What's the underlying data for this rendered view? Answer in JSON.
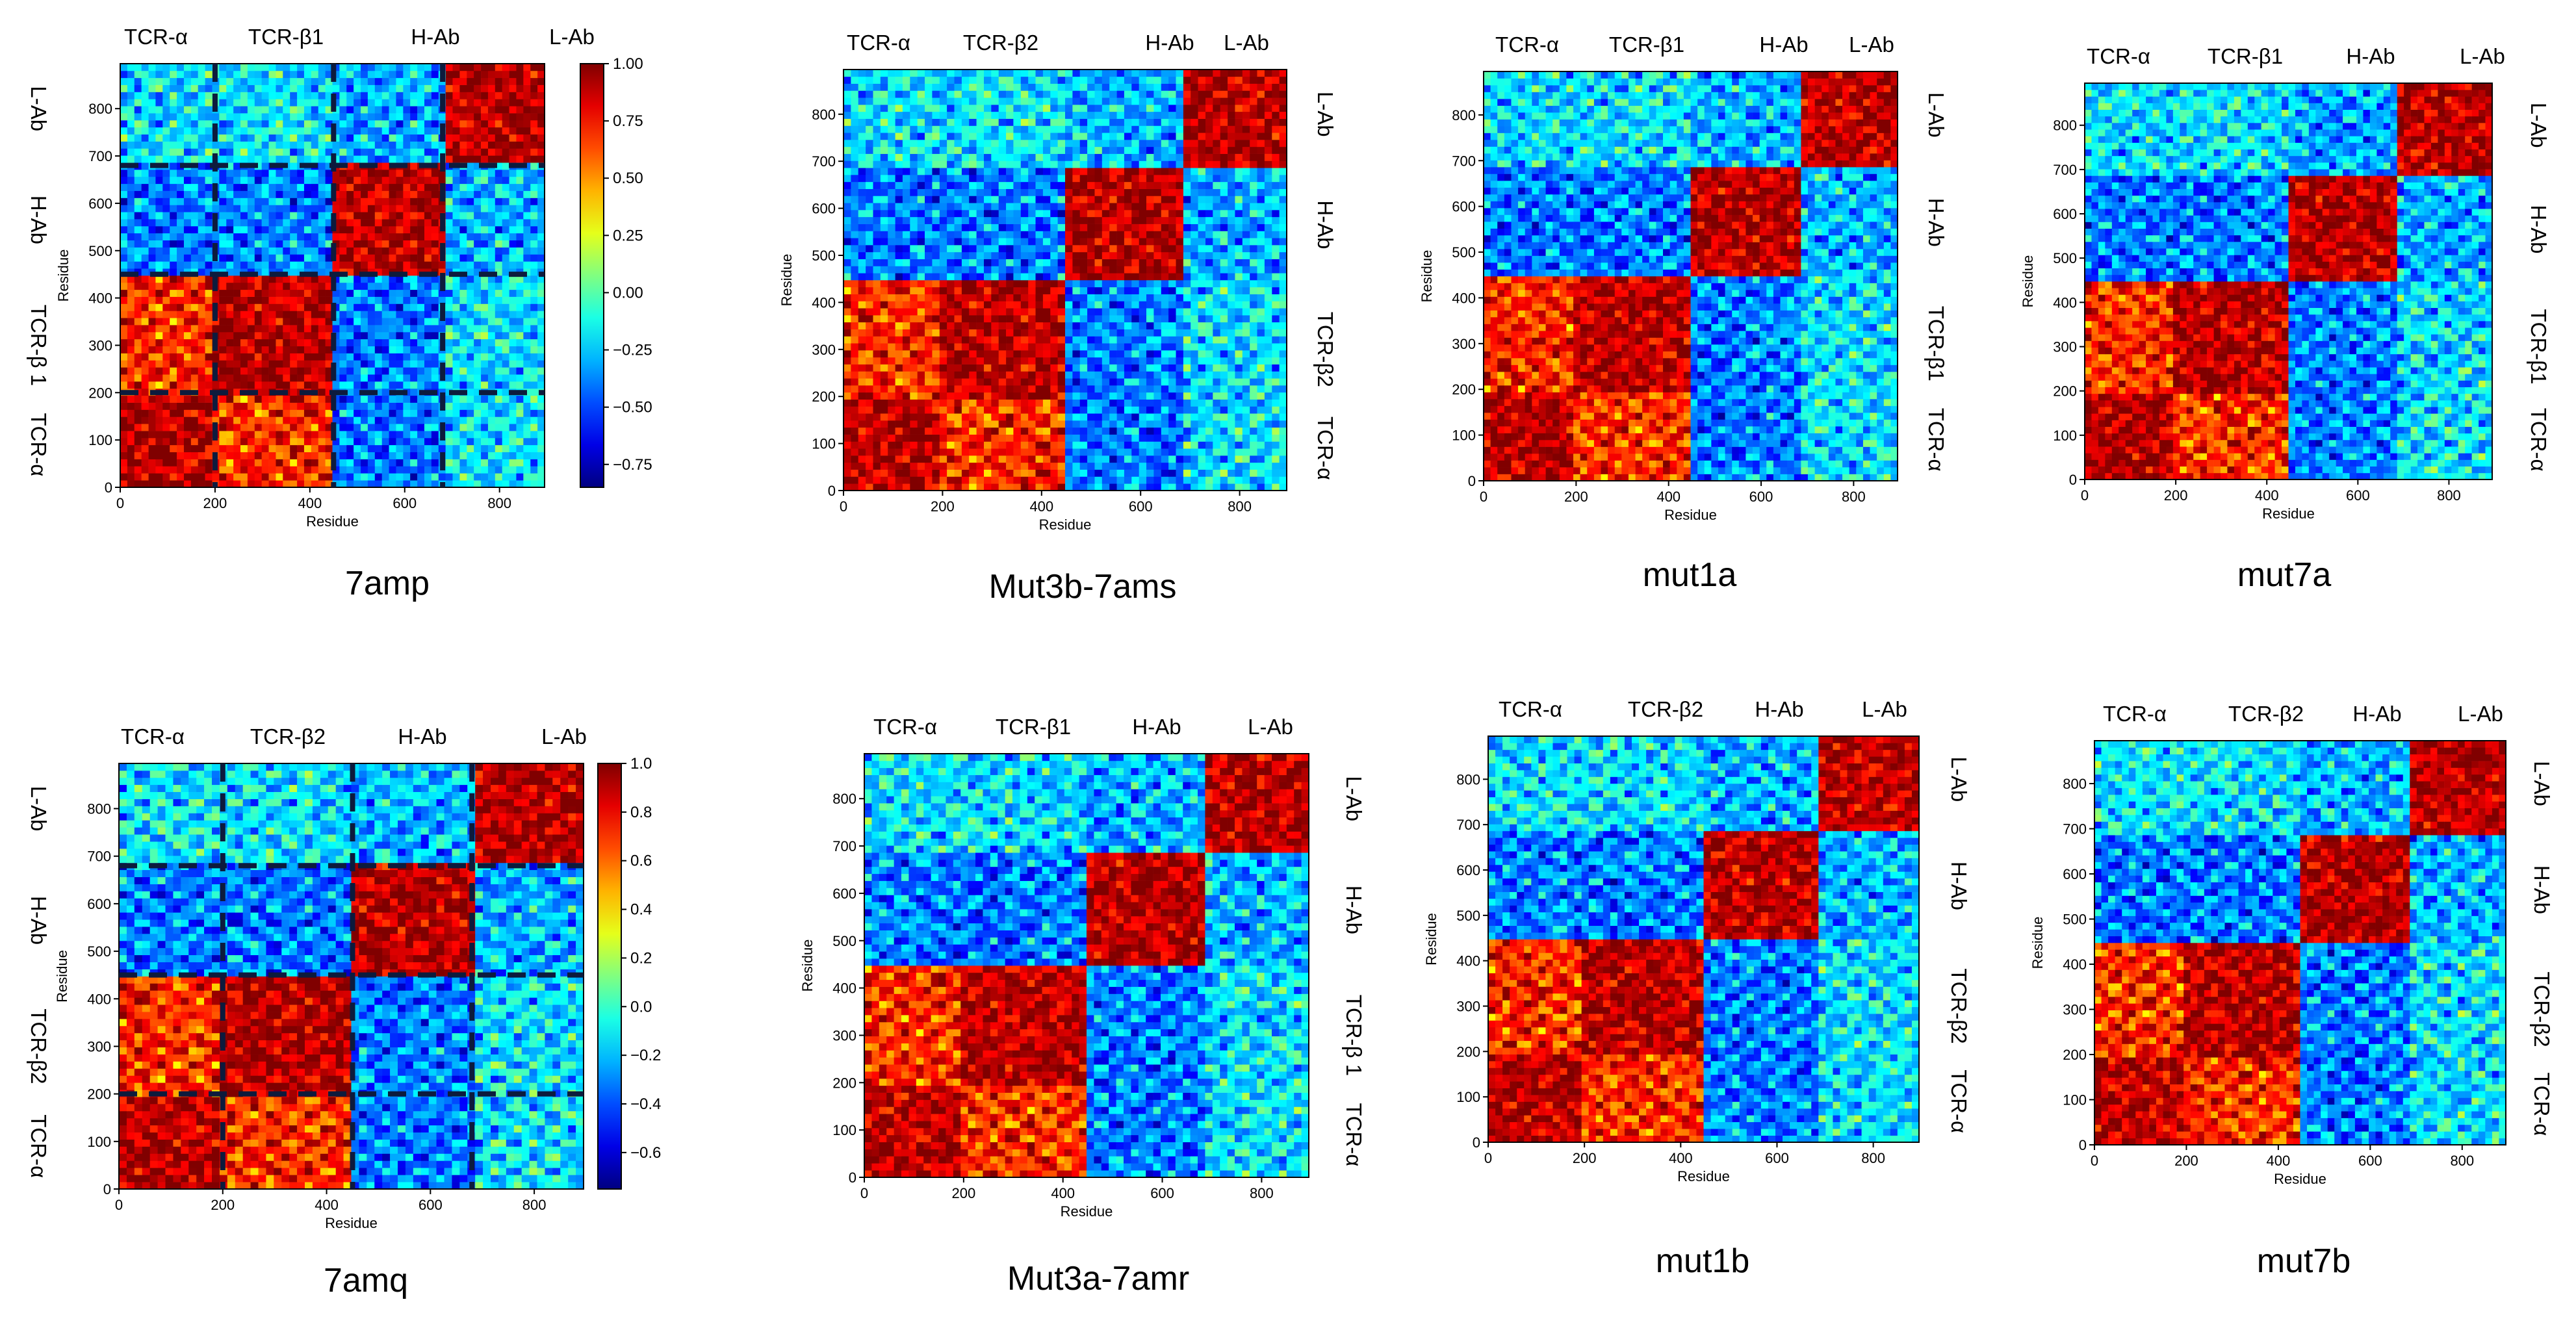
{
  "chart_data": {
    "type": "heatmap",
    "description": "Dynamic cross-correlation matrices of residue motions",
    "shared": {
      "xlabel": "Residue",
      "ylabel": "Residue",
      "xlim": [
        0,
        895
      ],
      "ylim": [
        0,
        895
      ],
      "ticks": [
        0,
        200,
        400,
        600,
        800
      ],
      "tick_labels_y": [
        "0",
        "100",
        "200",
        "300",
        "400",
        "500",
        "600",
        "700",
        "800"
      ],
      "tick_labels_x": [
        "0",
        "200",
        "400",
        "600",
        "800"
      ],
      "boundaries": [
        200,
        450,
        680
      ]
    },
    "colormaps": [
      {
        "name": "jet",
        "ticks": [
          "1.00",
          "0.75",
          "0.50",
          "0.25",
          "0.00",
          "−0.25",
          "−0.50",
          "−0.75"
        ],
        "range": [
          -0.85,
          1.0
        ]
      },
      {
        "name": "jet",
        "ticks": [
          "1.0",
          "0.8",
          "0.6",
          "0.4",
          "0.2",
          "0.0",
          "−0.2",
          "−0.4",
          "−0.6"
        ],
        "range": [
          -0.75,
          1.0
        ]
      }
    ],
    "panels": [
      {
        "id": "7amp",
        "title": "7amp",
        "top": [
          "TCR-α",
          "TCR-β1",
          "H-Ab",
          "L-Ab"
        ],
        "side": [
          "L-Ab",
          "H-Ab",
          "TCR-β 1",
          "TCR-α"
        ],
        "side_pos": "left",
        "colorbar": 0,
        "dashed": true
      },
      {
        "id": "mut3b",
        "title": "Mut3b-7ams",
        "top": [
          "TCR-α",
          "TCR-β2",
          "H-Ab",
          "L-Ab"
        ],
        "side": [
          "L-Ab",
          "H-Ab",
          "TCR-β2",
          "TCR-α"
        ],
        "side_pos": "right",
        "colorbar": null,
        "dashed": false
      },
      {
        "id": "mut1a",
        "title": "mut1a",
        "top": [
          "TCR-α",
          "TCR-β1",
          "H-Ab",
          "L-Ab"
        ],
        "side": [
          "L-Ab",
          "H-Ab",
          "TCR-β1",
          "TCR-α"
        ],
        "side_pos": "right",
        "colorbar": null,
        "dashed": false
      },
      {
        "id": "mut7a",
        "title": "mut7a",
        "top": [
          "TCR-α",
          "TCR-β1",
          "H-Ab",
          "L-Ab"
        ],
        "side": [
          "L-Ab",
          "H-Ab",
          "TCR-β1",
          "TCR-α"
        ],
        "side_pos": "right",
        "colorbar": null,
        "dashed": false
      },
      {
        "id": "7amq",
        "title": "7amq",
        "top": [
          "TCR-α",
          "TCR-β2",
          "H-Ab",
          "L-Ab"
        ],
        "side": [
          "L-Ab",
          "H-Ab",
          "TCR-β2",
          "TCR-α"
        ],
        "side_pos": "left",
        "colorbar": 1,
        "dashed": true
      },
      {
        "id": "mut3a",
        "title": "Mut3a-7amr",
        "top": [
          "TCR-α",
          "TCR-β1",
          "H-Ab",
          "L-Ab"
        ],
        "side": [
          "L-Ab",
          "H-Ab",
          "TCR-β 1",
          "TCR-α"
        ],
        "side_pos": "right",
        "colorbar": null,
        "dashed": false
      },
      {
        "id": "mut1b",
        "title": "mut1b",
        "top": [
          "TCR-α",
          "TCR-β2",
          "H-Ab",
          "L-Ab"
        ],
        "side": [
          "L-Ab",
          "H-Ab",
          "TCR-β2",
          "TCR-α"
        ],
        "side_pos": "right",
        "colorbar": null,
        "dashed": false
      },
      {
        "id": "mut7b",
        "title": "mut7b",
        "top": [
          "TCR-α",
          "TCR-β2",
          "H-Ab",
          "L-Ab"
        ],
        "side": [
          "L-Ab",
          "H-Ab",
          "TCR-β2",
          "TCR-α"
        ],
        "side_pos": "right",
        "colorbar": null,
        "dashed": false
      }
    ],
    "block_correlation": {
      "rows_cols": [
        "TCR-α",
        "TCR-β",
        "H-Ab",
        "L-Ab"
      ],
      "matrix": [
        [
          0.9,
          0.7,
          -0.4,
          -0.2
        ],
        [
          0.7,
          0.9,
          -0.4,
          -0.2
        ],
        [
          -0.4,
          -0.4,
          0.9,
          -0.3
        ],
        [
          -0.2,
          -0.2,
          -0.3,
          0.9
        ]
      ]
    }
  }
}
